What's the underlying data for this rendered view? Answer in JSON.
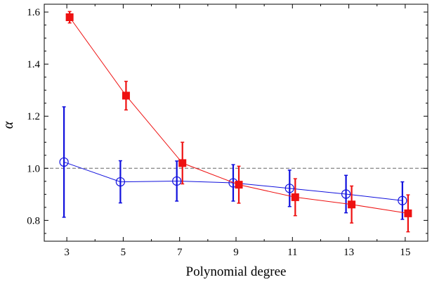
{
  "chart_data": {
    "type": "scatter",
    "xlabel": "Polynomial degree",
    "ylabel": "α",
    "xlim": [
      2.2,
      15.8
    ],
    "ylim": [
      0.72,
      1.63
    ],
    "xticks": [
      3,
      5,
      7,
      9,
      11,
      13,
      15
    ],
    "xtick_labels": [
      "3",
      "5",
      "7",
      "9",
      "11",
      "13",
      "15"
    ],
    "yticks": [
      0.8,
      1.0,
      1.2,
      1.4,
      1.6
    ],
    "ytick_labels": [
      "0.8",
      "1.0",
      "1.2",
      "1.4",
      "1.6"
    ],
    "reference_line": {
      "y": 1.0,
      "style": "dashed",
      "color": "#666666"
    },
    "grid": false,
    "legend": "none",
    "series": [
      {
        "color": "#1010dd",
        "marker": "open-circle",
        "x_offset": -0.1,
        "x": [
          3,
          5,
          7,
          9,
          11,
          13,
          15
        ],
        "y": [
          1.024,
          0.948,
          0.951,
          0.944,
          0.923,
          0.901,
          0.876
        ],
        "err": [
          0.212,
          0.081,
          0.077,
          0.07,
          0.07,
          0.072,
          0.072
        ]
      },
      {
        "color": "#ee1111",
        "marker": "filled-square",
        "x_offset": 0.1,
        "x": [
          3,
          5,
          7,
          9,
          11,
          13,
          15
        ],
        "y": [
          1.58,
          1.279,
          1.02,
          0.937,
          0.889,
          0.861,
          0.827
        ],
        "err": [
          0.022,
          0.055,
          0.08,
          0.071,
          0.071,
          0.071,
          0.071
        ]
      }
    ]
  }
}
